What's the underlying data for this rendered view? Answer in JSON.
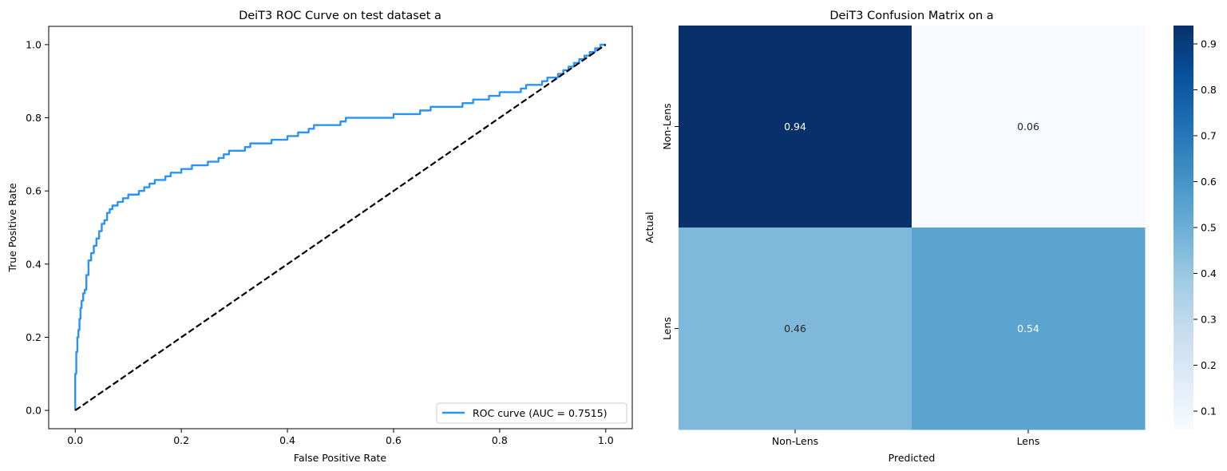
{
  "chart_data": [
    {
      "type": "line",
      "title": "DeiT3 ROC Curve on test dataset a",
      "xlabel": "False Positive Rate",
      "ylabel": "True Positive Rate",
      "xlim": [
        -0.05,
        1.05
      ],
      "ylim": [
        -0.05,
        1.05
      ],
      "xticks": [
        0.0,
        0.2,
        0.4,
        0.6,
        0.8,
        1.0
      ],
      "xtick_labels": [
        "0.0",
        "0.2",
        "0.4",
        "0.6",
        "0.8",
        "1.0"
      ],
      "yticks": [
        0.0,
        0.2,
        0.4,
        0.6,
        0.8,
        1.0
      ],
      "ytick_labels": [
        "0.0",
        "0.2",
        "0.4",
        "0.6",
        "0.8",
        "1.0"
      ],
      "grid": false,
      "legend_position": "lower-right",
      "series": [
        {
          "name": "ROC curve (AUC = 0.7515)",
          "color": "#2b93f5",
          "style": "solid",
          "x": [
            0.0,
            0.0,
            0.002,
            0.002,
            0.004,
            0.004,
            0.006,
            0.006,
            0.008,
            0.008,
            0.01,
            0.01,
            0.012,
            0.012,
            0.015,
            0.015,
            0.018,
            0.018,
            0.021,
            0.021,
            0.025,
            0.025,
            0.03,
            0.03,
            0.035,
            0.035,
            0.04,
            0.04,
            0.045,
            0.045,
            0.05,
            0.05,
            0.055,
            0.055,
            0.06,
            0.06,
            0.065,
            0.065,
            0.07,
            0.07,
            0.08,
            0.08,
            0.09,
            0.09,
            0.1,
            0.1,
            0.12,
            0.12,
            0.13,
            0.13,
            0.14,
            0.14,
            0.15,
            0.15,
            0.16,
            0.16,
            0.17,
            0.17,
            0.18,
            0.18,
            0.2,
            0.2,
            0.22,
            0.22,
            0.24,
            0.24,
            0.25,
            0.25,
            0.27,
            0.27,
            0.28,
            0.28,
            0.29,
            0.29,
            0.3,
            0.3,
            0.32,
            0.32,
            0.33,
            0.33,
            0.35,
            0.35,
            0.37,
            0.37,
            0.38,
            0.38,
            0.4,
            0.4,
            0.42,
            0.42,
            0.44,
            0.44,
            0.45,
            0.45,
            0.5,
            0.5,
            0.51,
            0.51,
            0.53,
            0.53,
            0.6,
            0.6,
            0.63,
            0.63,
            0.65,
            0.65,
            0.67,
            0.67,
            0.7,
            0.7,
            0.73,
            0.73,
            0.75,
            0.75,
            0.78,
            0.78,
            0.8,
            0.8,
            0.82,
            0.82,
            0.84,
            0.84,
            0.85,
            0.85,
            0.88,
            0.88,
            0.89,
            0.89,
            0.91,
            0.91,
            0.92,
            0.92,
            0.93,
            0.93,
            0.94,
            0.94,
            0.95,
            0.95,
            0.96,
            0.96,
            0.97,
            0.97,
            0.98,
            0.98,
            0.99,
            0.99,
            1.0
          ],
          "y": [
            0.0,
            0.1,
            0.1,
            0.16,
            0.16,
            0.2,
            0.2,
            0.22,
            0.22,
            0.25,
            0.25,
            0.28,
            0.28,
            0.3,
            0.3,
            0.32,
            0.32,
            0.33,
            0.33,
            0.37,
            0.37,
            0.41,
            0.41,
            0.43,
            0.43,
            0.45,
            0.45,
            0.47,
            0.47,
            0.49,
            0.49,
            0.51,
            0.51,
            0.52,
            0.52,
            0.54,
            0.54,
            0.55,
            0.55,
            0.56,
            0.56,
            0.57,
            0.57,
            0.58,
            0.58,
            0.59,
            0.59,
            0.6,
            0.6,
            0.61,
            0.61,
            0.62,
            0.62,
            0.63,
            0.63,
            0.63,
            0.63,
            0.64,
            0.64,
            0.65,
            0.65,
            0.66,
            0.66,
            0.67,
            0.67,
            0.67,
            0.67,
            0.68,
            0.68,
            0.69,
            0.69,
            0.7,
            0.7,
            0.71,
            0.71,
            0.71,
            0.71,
            0.72,
            0.72,
            0.73,
            0.73,
            0.73,
            0.73,
            0.74,
            0.74,
            0.74,
            0.74,
            0.75,
            0.75,
            0.76,
            0.76,
            0.77,
            0.77,
            0.78,
            0.78,
            0.79,
            0.79,
            0.8,
            0.8,
            0.8,
            0.8,
            0.81,
            0.81,
            0.81,
            0.81,
            0.82,
            0.82,
            0.83,
            0.83,
            0.83,
            0.83,
            0.84,
            0.84,
            0.85,
            0.85,
            0.86,
            0.86,
            0.87,
            0.87,
            0.87,
            0.87,
            0.88,
            0.88,
            0.89,
            0.89,
            0.9,
            0.9,
            0.91,
            0.91,
            0.92,
            0.92,
            0.93,
            0.93,
            0.94,
            0.94,
            0.95,
            0.95,
            0.96,
            0.96,
            0.97,
            0.97,
            0.98,
            0.98,
            0.99,
            0.99,
            1.0,
            1.0
          ]
        },
        {
          "name": "",
          "color": "#000000",
          "style": "dashed",
          "x": [
            0.0,
            1.0
          ],
          "y": [
            0.0,
            1.0
          ]
        }
      ]
    },
    {
      "type": "heatmap",
      "title": "DeiT3 Confusion Matrix on a",
      "xlabel": "Predicted",
      "ylabel": "Actual",
      "x_categories": [
        "Non-Lens",
        "Lens"
      ],
      "y_categories": [
        "Non-Lens",
        "Lens"
      ],
      "values": [
        [
          0.94,
          0.06
        ],
        [
          0.46,
          0.54
        ]
      ],
      "value_labels": [
        [
          "0.94",
          "0.06"
        ],
        [
          "0.46",
          "0.54"
        ]
      ],
      "colormap": "Blues",
      "vmin": 0.06,
      "vmax": 0.94,
      "colorbar_ticks": [
        0.1,
        0.2,
        0.3,
        0.4,
        0.5,
        0.6,
        0.7,
        0.8,
        0.9
      ],
      "colorbar_tick_labels": [
        "0.1",
        "0.2",
        "0.3",
        "0.4",
        "0.5",
        "0.6",
        "0.7",
        "0.8",
        "0.9"
      ]
    }
  ]
}
